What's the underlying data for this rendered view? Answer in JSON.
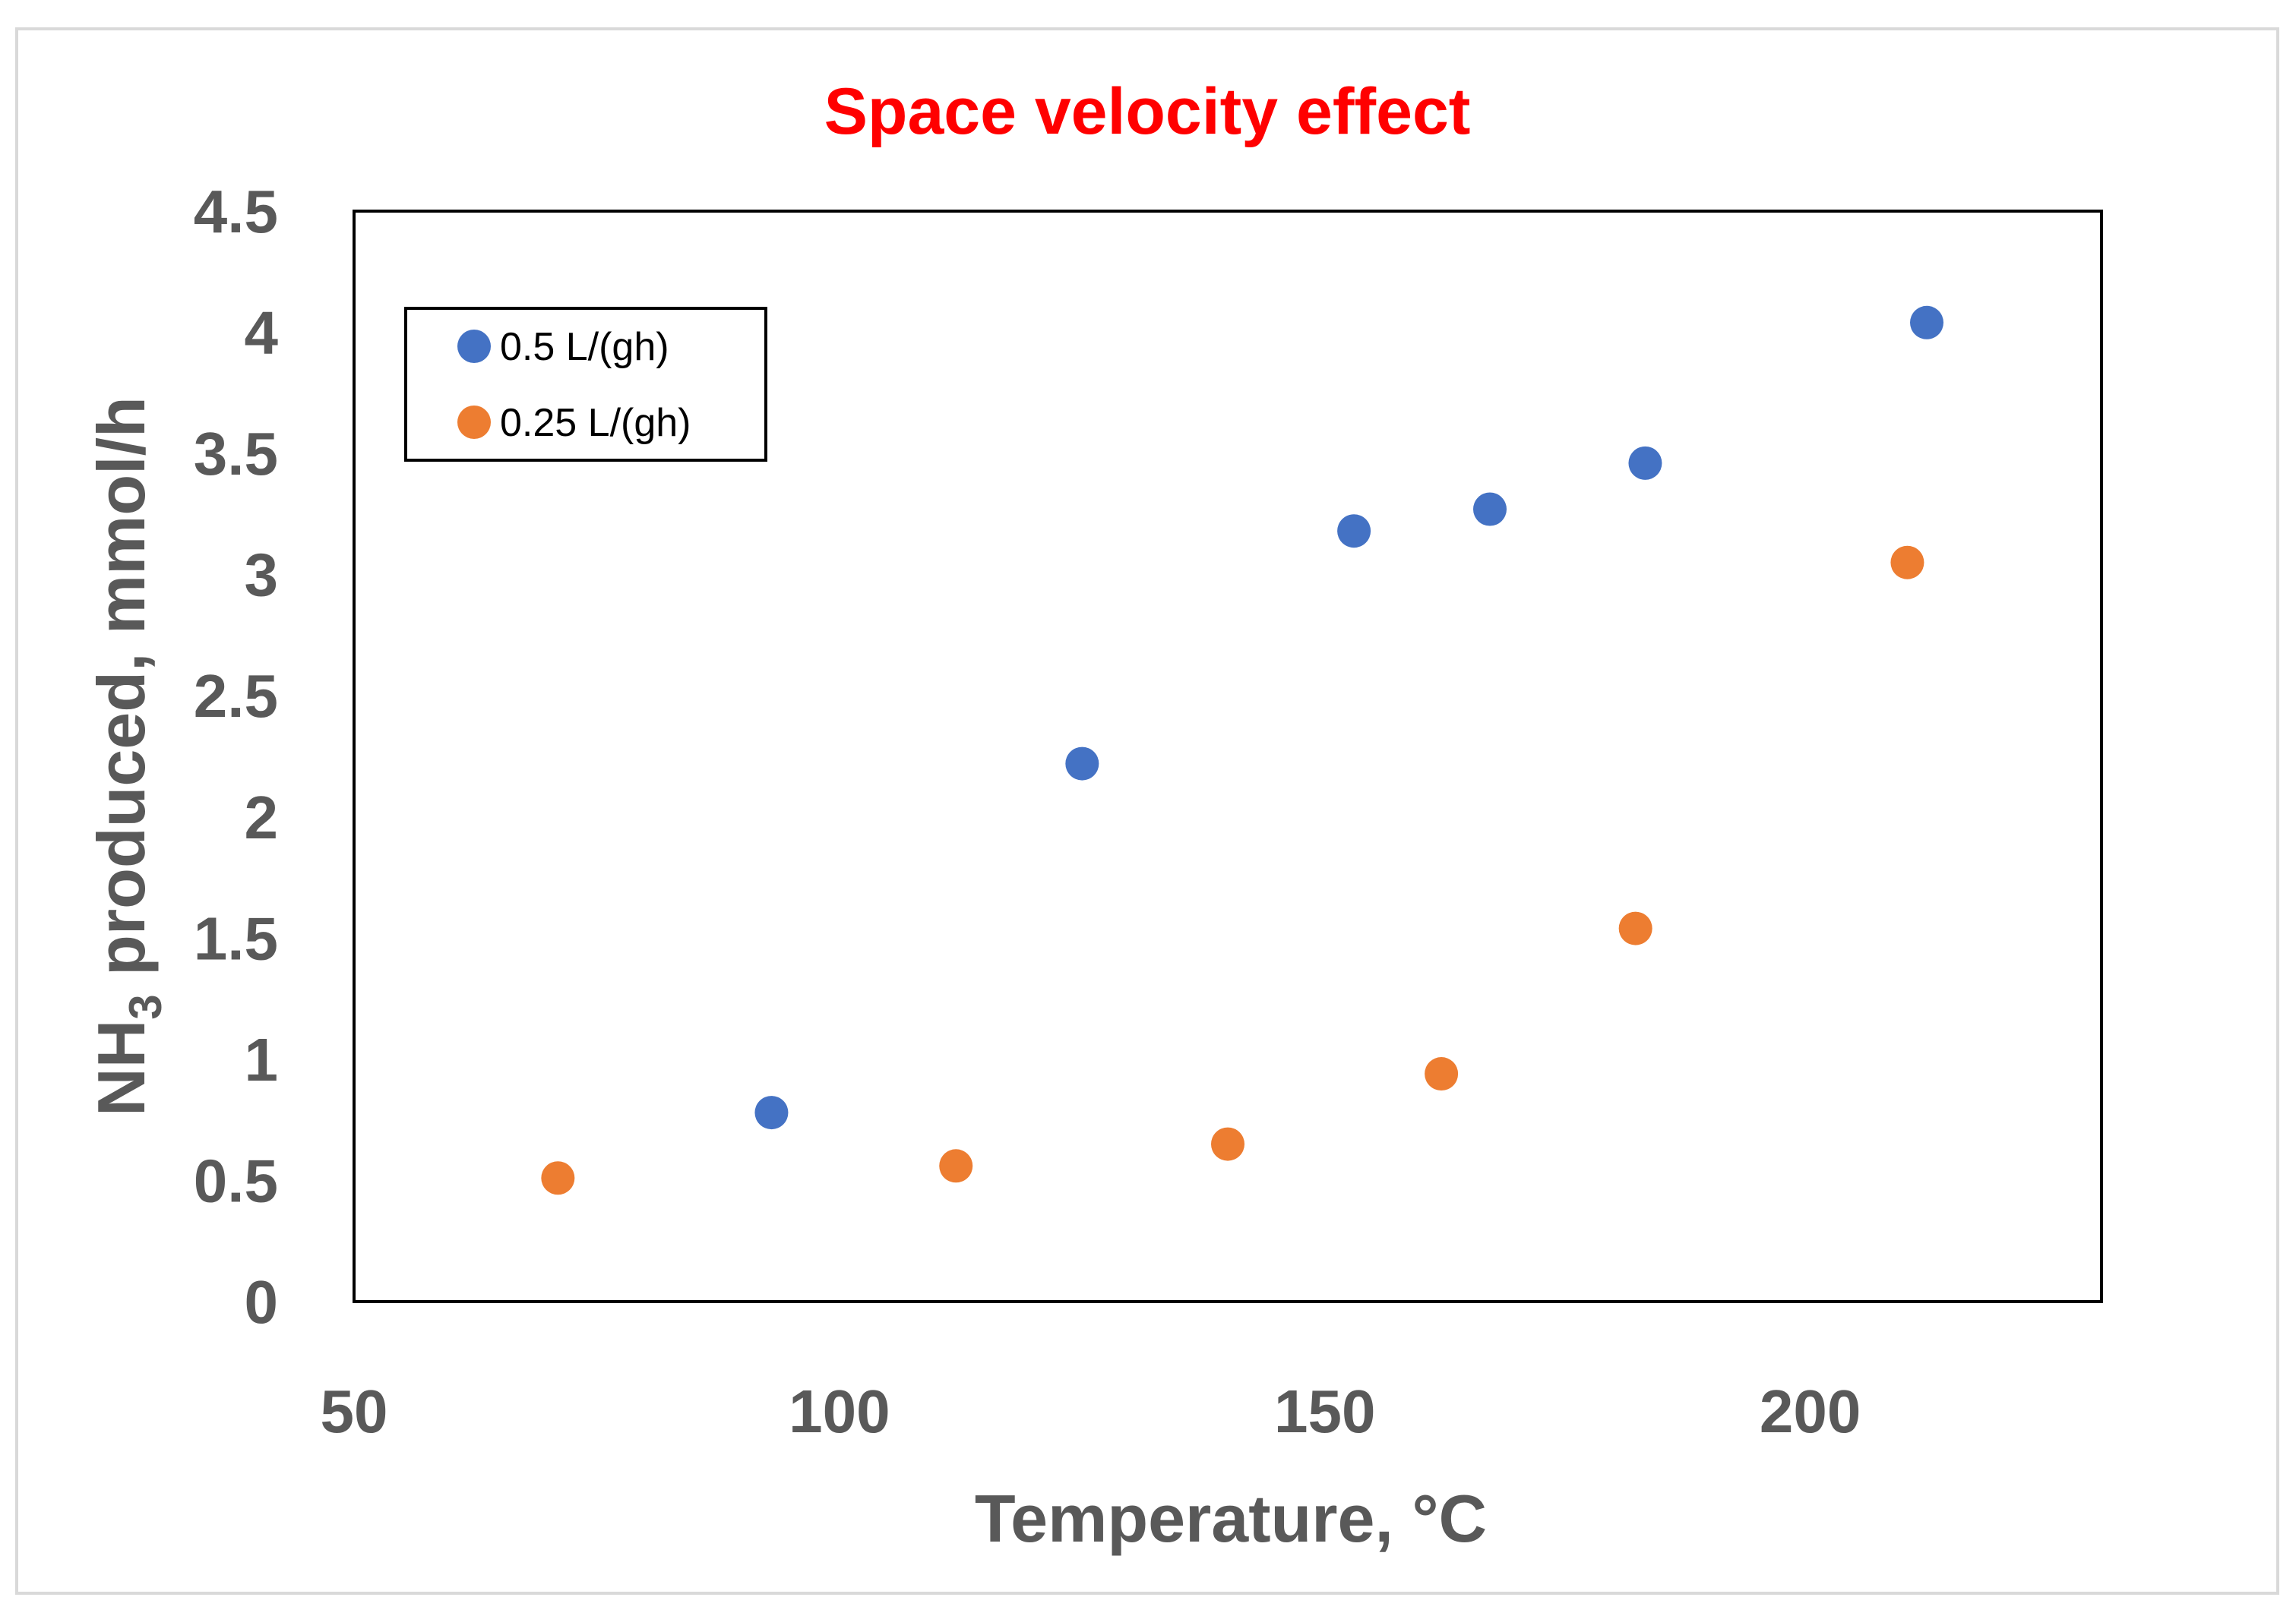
{
  "chart_data": {
    "type": "scatter",
    "title": "Space velocity effect",
    "xlabel": "Temperature, °C",
    "ylabel_main": "NH",
    "ylabel_sub": "3",
    "ylabel_rest": " produced, mmol/h",
    "xlim": [
      50,
      230
    ],
    "ylim": [
      0,
      4.5
    ],
    "xticks": [
      50,
      100,
      150,
      200
    ],
    "yticks": [
      0,
      0.5,
      1,
      1.5,
      2,
      2.5,
      3,
      3.5,
      4,
      4.5
    ],
    "legend_position": "top-left",
    "series": [
      {
        "name": "0.5 L/(gh)",
        "color": "#4472c4",
        "x": [
          93,
          125,
          153,
          167,
          183,
          212
        ],
        "y": [
          0.78,
          2.22,
          3.18,
          3.27,
          3.46,
          4.04
        ]
      },
      {
        "name": "0.25 L/(gh)",
        "color": "#ed7d31",
        "x": [
          71,
          112,
          140,
          162,
          182,
          210
        ],
        "y": [
          0.51,
          0.56,
          0.65,
          0.94,
          1.54,
          3.05
        ]
      }
    ]
  }
}
